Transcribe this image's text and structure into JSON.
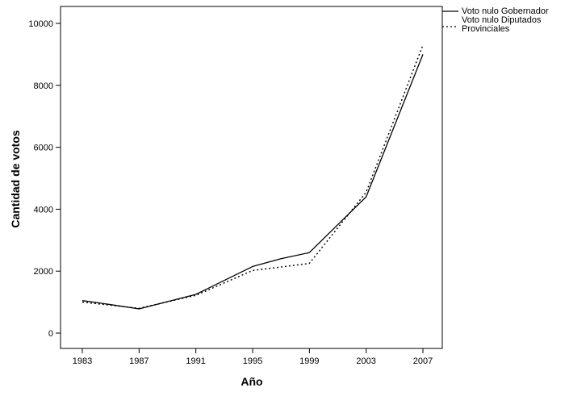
{
  "chart_data": {
    "type": "line",
    "title": "",
    "xlabel": "Año",
    "ylabel": "Cantidad de votos",
    "categories": [
      "1983",
      "1987",
      "1991",
      "1995",
      "1999",
      "2003",
      "2007"
    ],
    "ylim": [
      -500,
      10500
    ],
    "yticks": [
      0,
      2000,
      4000,
      6000,
      8000,
      10000
    ],
    "ytick_labels": [
      "0",
      "2000",
      "4000",
      "6000",
      "8000",
      "10000"
    ],
    "grid": false,
    "legend_position": "top-right",
    "series": [
      {
        "name": "Voto nulo Gobernador",
        "style": "solid",
        "color": "#000000",
        "x": [
          1983,
          1985,
          1987,
          1991,
          1995,
          1997,
          1999,
          2003,
          2007
        ],
        "values": [
          1050,
          920,
          780,
          1250,
          2150,
          2400,
          2600,
          4400,
          9000
        ]
      },
      {
        "name": "Voto nulo Diputados Provinciales",
        "style": "dotted",
        "color": "#000000",
        "x": [
          1983,
          1987,
          1991,
          1995,
          1999,
          2003,
          2007
        ],
        "values": [
          1000,
          800,
          1220,
          2020,
          2250,
          4550,
          9300
        ]
      }
    ]
  }
}
